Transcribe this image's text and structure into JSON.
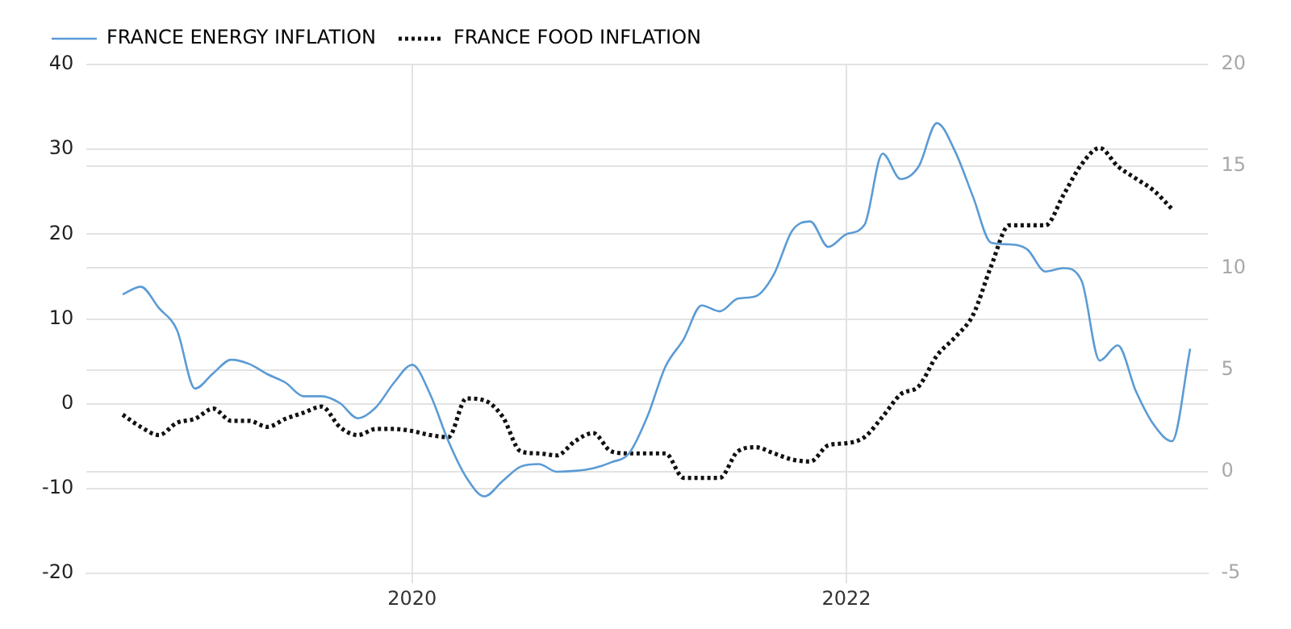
{
  "chart_data": {
    "type": "line",
    "x": [
      "2018-09",
      "2018-10",
      "2018-11",
      "2018-12",
      "2019-01",
      "2019-02",
      "2019-03",
      "2019-04",
      "2019-05",
      "2019-06",
      "2019-07",
      "2019-08",
      "2019-09",
      "2019-10",
      "2019-11",
      "2019-12",
      "2020-01",
      "2020-02",
      "2020-03",
      "2020-04",
      "2020-05",
      "2020-06",
      "2020-07",
      "2020-08",
      "2020-09",
      "2020-10",
      "2020-11",
      "2020-12",
      "2021-01",
      "2021-02",
      "2021-03",
      "2021-04",
      "2021-05",
      "2021-06",
      "2021-07",
      "2021-08",
      "2021-09",
      "2021-10",
      "2021-11",
      "2021-12",
      "2022-01",
      "2022-02",
      "2022-03",
      "2022-04",
      "2022-05",
      "2022-06",
      "2022-07",
      "2022-08",
      "2022-09",
      "2022-10",
      "2022-11",
      "2022-12",
      "2023-01",
      "2023-02",
      "2023-03",
      "2023-04",
      "2023-05",
      "2023-06",
      "2023-07",
      "2023-08"
    ],
    "series": [
      {
        "name": "FRANCE ENERGY INFLATION",
        "color": "#5b9bd5",
        "line_style": "solid",
        "values": [
          12.9,
          13.8,
          11.3,
          8.7,
          1.8,
          3.6,
          5.2,
          4.7,
          3.5,
          2.5,
          0.9,
          0.9,
          0.1,
          -1.7,
          -0.4,
          2.5,
          4.6,
          1.1,
          -4.4,
          -8.7,
          -10.9,
          -9.1,
          -7.4,
          -7.1,
          -8.0,
          -7.9,
          -7.6,
          -6.9,
          -5.8,
          -1.5,
          4.4,
          7.6,
          11.6,
          10.9,
          12.4,
          12.7,
          15.3,
          20.4,
          21.5,
          18.5,
          20.0,
          21.1,
          29.5,
          26.5,
          28.0,
          33.1,
          29.8,
          24.4,
          19.0,
          18.8,
          18.2,
          15.6,
          16.0,
          14.5,
          5.1,
          6.9,
          1.5,
          -2.5,
          -4.4,
          6.5
        ]
      },
      {
        "name": "FRANCE FOOD INFLATION",
        "color": "#111111",
        "line_style": "dotted",
        "axis": "y2",
        "values": [
          2.8,
          2.2,
          1.8,
          2.4,
          2.6,
          3.1,
          2.5,
          2.5,
          2.2,
          2.6,
          2.9,
          3.2,
          2.2,
          1.8,
          2.1,
          2.1,
          2.0,
          1.8,
          1.7,
          3.6,
          3.5,
          2.7,
          1.0,
          0.9,
          0.8,
          1.5,
          1.9,
          1.0,
          0.9,
          0.9,
          0.9,
          -0.3,
          -0.3,
          -0.3,
          1.0,
          1.2,
          0.9,
          0.6,
          0.5,
          1.3,
          1.4,
          1.7,
          2.7,
          3.8,
          4.2,
          5.7,
          6.6,
          7.7,
          10.1,
          12.1,
          12.1,
          12.1,
          13.6,
          15.1,
          15.9,
          15.0,
          14.4,
          13.8,
          12.9,
          null
        ]
      }
    ],
    "xlim": [
      "2018-07",
      "2023-09"
    ],
    "xticks": [
      "2020",
      "2022"
    ],
    "ylim": [
      -20,
      40
    ],
    "yticks": [
      -20,
      -10,
      0,
      10,
      20,
      30,
      40
    ],
    "y2lim": [
      -5,
      20
    ],
    "y2ticks": [
      -5,
      0,
      5,
      10,
      15,
      20
    ],
    "grid": true,
    "legend": "top left",
    "marker": "none"
  }
}
